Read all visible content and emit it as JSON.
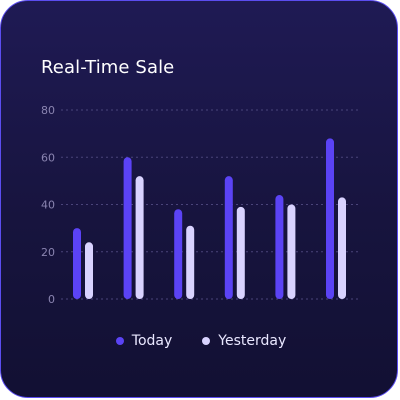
{
  "title": "Real-Time Sale",
  "colors": {
    "today": "#5b43f5",
    "yesterday": "#d9d3ff",
    "grid": "#4a447a",
    "tick": "#8a84b0"
  },
  "chart_data": {
    "type": "bar",
    "title": "Real-Time Sale",
    "categories": [
      "",
      "",
      "",
      "",
      "",
      ""
    ],
    "series": [
      {
        "name": "Today",
        "values": [
          30,
          60,
          38,
          52,
          44,
          68
        ]
      },
      {
        "name": "Yesterday",
        "values": [
          24,
          52,
          31,
          39,
          40,
          43
        ]
      }
    ],
    "yticks": [
      "0",
      "20",
      "40",
      "60",
      "80"
    ],
    "ylim": [
      0,
      80
    ],
    "grid": true,
    "legend": "bottom-center"
  }
}
